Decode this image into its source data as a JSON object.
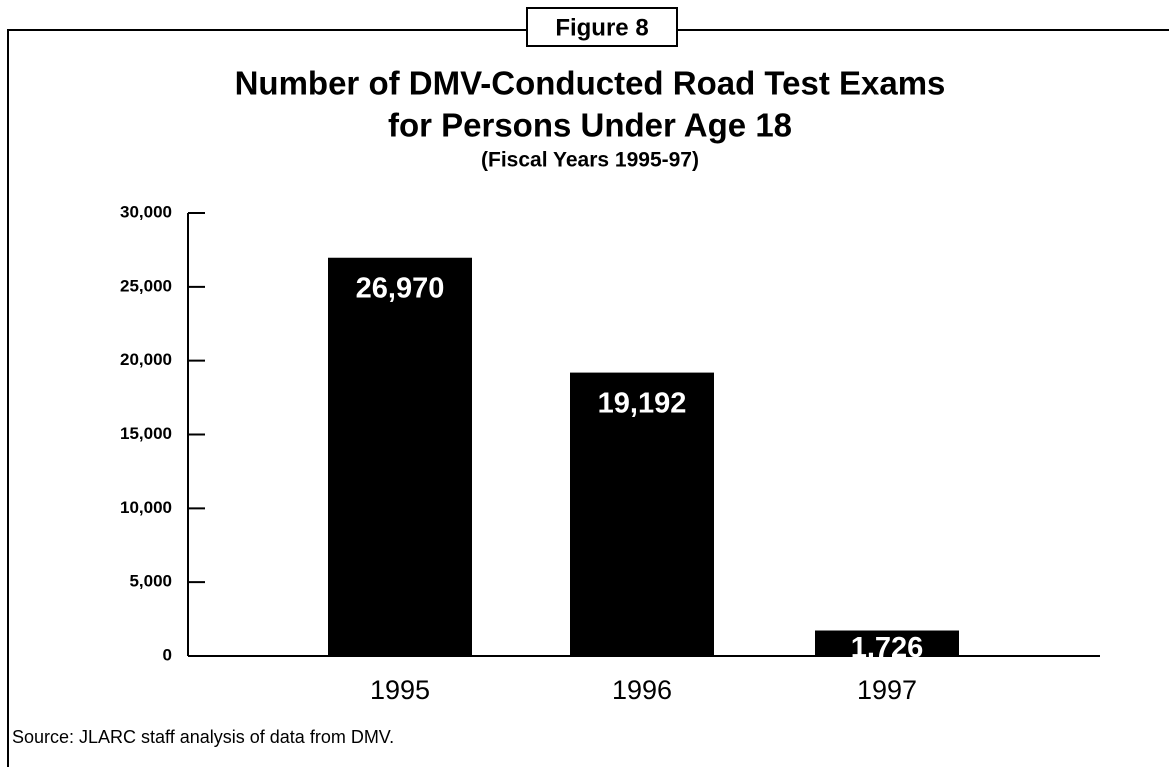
{
  "chart_data": {
    "type": "bar",
    "figure_label": "Figure 8",
    "title": "Number of DMV-Conducted Road Test Exams",
    "title_line2": "for Persons Under Age 18",
    "subtitle": "(Fiscal Years 1995-97)",
    "categories": [
      "1995",
      "1996",
      "1997"
    ],
    "values": [
      26970,
      19192,
      1726
    ],
    "value_labels": [
      "26,970",
      "19,192",
      "1,726"
    ],
    "color": "#000000",
    "ylim": [
      0,
      30000
    ],
    "yticks": [
      0,
      {
        "value": 5000,
        "label": "5,000"
      },
      {
        "value": 10000,
        "label": "10,000"
      },
      {
        "value": 15000,
        "label": "15,000"
      },
      {
        "value": 20000,
        "label": "20,000"
      },
      {
        "value": 25000,
        "label": "25,000"
      },
      {
        "value": 30000,
        "label": "30,000"
      }
    ],
    "grid": false,
    "source": "Source:  JLARC staff analysis of data from DMV."
  }
}
